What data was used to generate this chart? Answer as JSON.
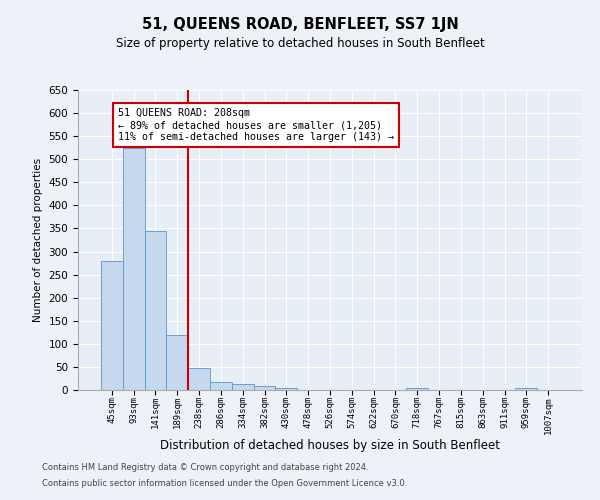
{
  "title": "51, QUEENS ROAD, BENFLEET, SS7 1JN",
  "subtitle": "Size of property relative to detached houses in South Benfleet",
  "xlabel": "Distribution of detached houses by size in South Benfleet",
  "ylabel": "Number of detached properties",
  "categories": [
    "45sqm",
    "93sqm",
    "141sqm",
    "189sqm",
    "238sqm",
    "286sqm",
    "334sqm",
    "382sqm",
    "430sqm",
    "478sqm",
    "526sqm",
    "574sqm",
    "622sqm",
    "670sqm",
    "718sqm",
    "767sqm",
    "815sqm",
    "863sqm",
    "911sqm",
    "959sqm",
    "1007sqm"
  ],
  "values": [
    280,
    525,
    345,
    120,
    47,
    17,
    12,
    8,
    5,
    0,
    0,
    0,
    0,
    0,
    5,
    0,
    0,
    0,
    0,
    5,
    0
  ],
  "bar_color": "#c5d8ed",
  "bar_edge_color": "#5a96c8",
  "redline_x": 3.5,
  "annotation_line1": "51 QUEENS ROAD: 208sqm",
  "annotation_line2": "← 89% of detached houses are smaller (1,205)",
  "annotation_line3": "11% of semi-detached houses are larger (143) →",
  "annotation_box_color": "#ffffff",
  "annotation_box_edge_color": "#cc0000",
  "redline_color": "#cc0000",
  "ylim": [
    0,
    650
  ],
  "yticks": [
    0,
    50,
    100,
    150,
    200,
    250,
    300,
    350,
    400,
    450,
    500,
    550,
    600,
    650
  ],
  "footer1": "Contains HM Land Registry data © Crown copyright and database right 2024.",
  "footer2": "Contains public sector information licensed under the Open Government Licence v3.0.",
  "bg_color": "#eef2f8",
  "plot_bg_color": "#e8eef6"
}
